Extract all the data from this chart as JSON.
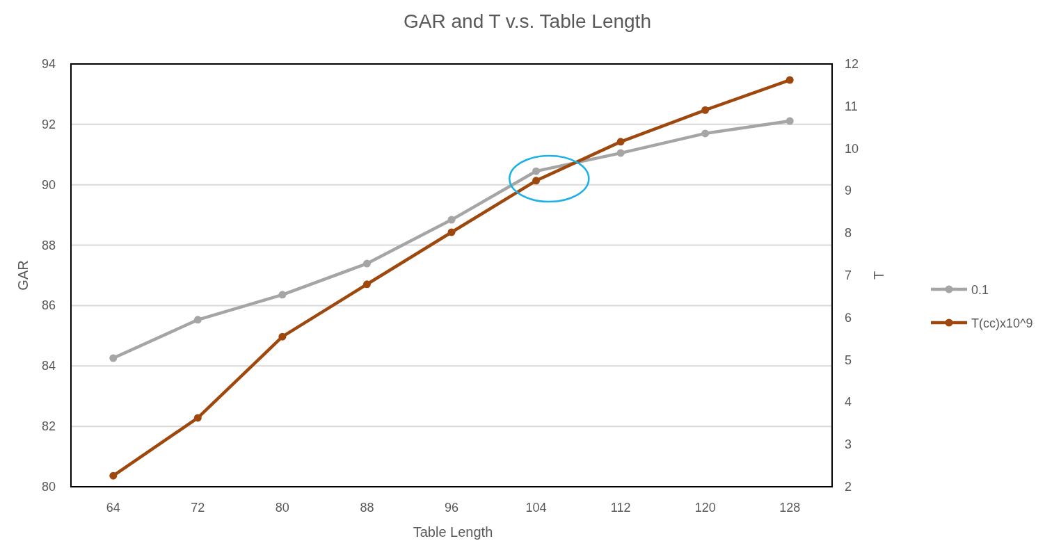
{
  "chart_data": {
    "type": "line",
    "title": "GAR and T v.s. Table Length",
    "xlabel": "Table Length",
    "ylabel": "GAR",
    "y2label": "T",
    "categories": [
      "64",
      "72",
      "80",
      "88",
      "96",
      "104",
      "112",
      "120",
      "128"
    ],
    "series": [
      {
        "name": "0.1",
        "color": "#a5a5a5",
        "values": [
          84.26,
          85.53,
          86.36,
          87.39,
          88.84,
          90.45,
          91.05,
          91.7,
          92.11
        ]
      },
      {
        "name": "T(cc)x10^9",
        "color": "#9e480e",
        "axis": "y2",
        "values": [
          2.26,
          3.63,
          5.55,
          6.79,
          8.02,
          9.24,
          10.16,
          10.91,
          11.62
        ]
      }
    ],
    "ylim": [
      80,
      94
    ],
    "yticks": [
      80,
      82,
      84,
      86,
      88,
      90,
      92,
      94
    ],
    "y2lim": [
      2,
      12
    ],
    "y2ticks": [
      2,
      3,
      4,
      5,
      6,
      7,
      8,
      9,
      10,
      11,
      12
    ],
    "grid": "y",
    "legend": "right",
    "marker": "circle",
    "line_style": "solid"
  }
}
